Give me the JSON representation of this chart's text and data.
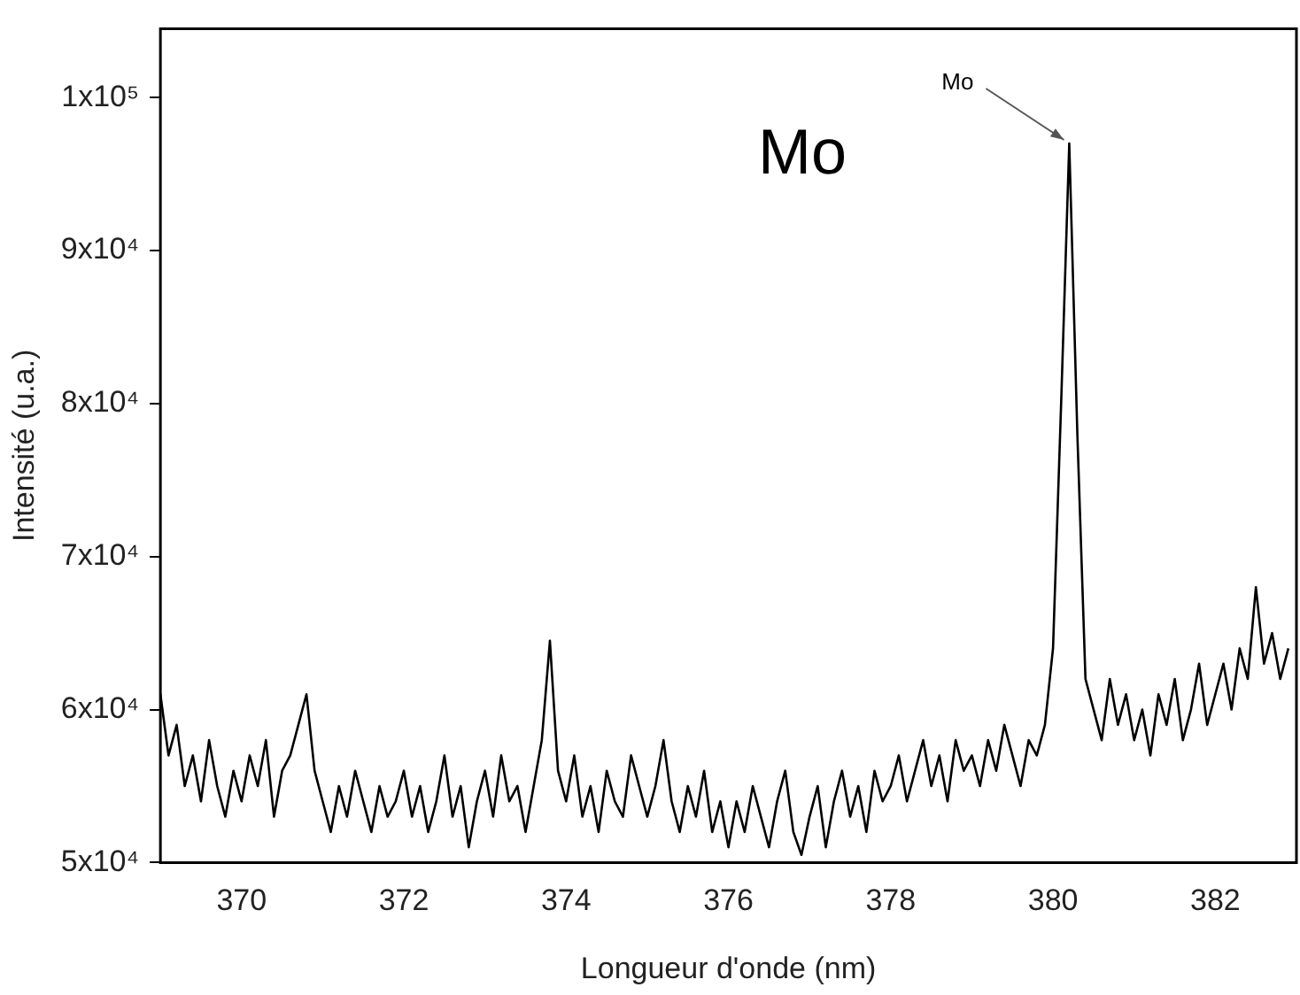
{
  "chart_data": {
    "type": "line",
    "xlabel": "Longueur d'onde (nm)",
    "ylabel": "Intensité (u.a.)",
    "annotations": [
      "Mo",
      {
        "text": "Mo",
        "x": 380.2,
        "y": 97000
      }
    ],
    "xlim": [
      369,
      383
    ],
    "xticks": [
      370,
      372,
      374,
      376,
      378,
      380,
      382
    ],
    "ylim": [
      50000,
      104500
    ],
    "yticks": [
      {
        "value": 50000,
        "label": "5x10⁴"
      },
      {
        "value": 60000,
        "label": "6x10⁴"
      },
      {
        "value": 70000,
        "label": "7x10⁴"
      },
      {
        "value": 80000,
        "label": "8x10⁴"
      },
      {
        "value": 90000,
        "label": "9x10⁴"
      },
      {
        "value": 100000,
        "label": "1x10⁵"
      }
    ],
    "grid": false,
    "legend": false,
    "marker": "none",
    "line_style": "solid",
    "series": [
      {
        "color": "#000000",
        "x": [
          369.0,
          369.1,
          369.2,
          369.3,
          369.4,
          369.5,
          369.6,
          369.7,
          369.8,
          369.9,
          370.0,
          370.1,
          370.2,
          370.3,
          370.4,
          370.5,
          370.6,
          370.7,
          370.8,
          370.9,
          371.0,
          371.1,
          371.2,
          371.3,
          371.4,
          371.5,
          371.6,
          371.7,
          371.8,
          371.9,
          372.0,
          372.1,
          372.2,
          372.3,
          372.4,
          372.5,
          372.6,
          372.7,
          372.8,
          372.9,
          373.0,
          373.1,
          373.2,
          373.3,
          373.4,
          373.5,
          373.6,
          373.7,
          373.8,
          373.9,
          374.0,
          374.1,
          374.2,
          374.3,
          374.4,
          374.5,
          374.6,
          374.7,
          374.8,
          374.9,
          375.0,
          375.1,
          375.2,
          375.3,
          375.4,
          375.5,
          375.6,
          375.7,
          375.8,
          375.9,
          376.0,
          376.1,
          376.2,
          376.3,
          376.4,
          376.5,
          376.6,
          376.7,
          376.8,
          376.9,
          377.0,
          377.1,
          377.2,
          377.3,
          377.4,
          377.5,
          377.6,
          377.7,
          377.8,
          377.9,
          378.0,
          378.1,
          378.2,
          378.3,
          378.4,
          378.5,
          378.6,
          378.7,
          378.8,
          378.9,
          379.0,
          379.1,
          379.2,
          379.3,
          379.4,
          379.5,
          379.6,
          379.7,
          379.8,
          379.9,
          380.0,
          380.1,
          380.2,
          380.3,
          380.4,
          380.5,
          380.6,
          380.7,
          380.8,
          380.9,
          381.0,
          381.1,
          381.2,
          381.3,
          381.4,
          381.5,
          381.6,
          381.7,
          381.8,
          381.9,
          382.0,
          382.1,
          382.2,
          382.3,
          382.4,
          382.5,
          382.6,
          382.7,
          382.8,
          382.9
        ],
        "values": [
          61000,
          57000,
          59000,
          55000,
          57000,
          54000,
          58000,
          55000,
          53000,
          56000,
          54000,
          57000,
          55000,
          58000,
          53000,
          56000,
          57000,
          59000,
          61000,
          56000,
          54000,
          52000,
          55000,
          53000,
          56000,
          54000,
          52000,
          55000,
          53000,
          54000,
          56000,
          53000,
          55000,
          52000,
          54000,
          57000,
          53000,
          55000,
          51000,
          54000,
          56000,
          53000,
          57000,
          54000,
          55000,
          52000,
          55000,
          58000,
          64500,
          56000,
          54000,
          57000,
          53000,
          55000,
          52000,
          56000,
          54000,
          53000,
          57000,
          55000,
          53000,
          55000,
          58000,
          54000,
          52000,
          55000,
          53000,
          56000,
          52000,
          54000,
          51000,
          54000,
          52000,
          55000,
          53000,
          51000,
          54000,
          56000,
          52000,
          50500,
          53000,
          55000,
          51000,
          54000,
          56000,
          53000,
          55000,
          52000,
          56000,
          54000,
          55000,
          57000,
          54000,
          56000,
          58000,
          55000,
          57000,
          54000,
          58000,
          56000,
          57000,
          55000,
          58000,
          56000,
          59000,
          57000,
          55000,
          58000,
          57000,
          59000,
          64000,
          80000,
          97000,
          78000,
          62000,
          60000,
          58000,
          62000,
          59000,
          61000,
          58000,
          60000,
          57000,
          61000,
          59000,
          62000,
          58000,
          60000,
          63000,
          59000,
          61000,
          63000,
          60000,
          64000,
          62000,
          68000,
          63000,
          65000,
          62000,
          64000
        ]
      }
    ]
  }
}
